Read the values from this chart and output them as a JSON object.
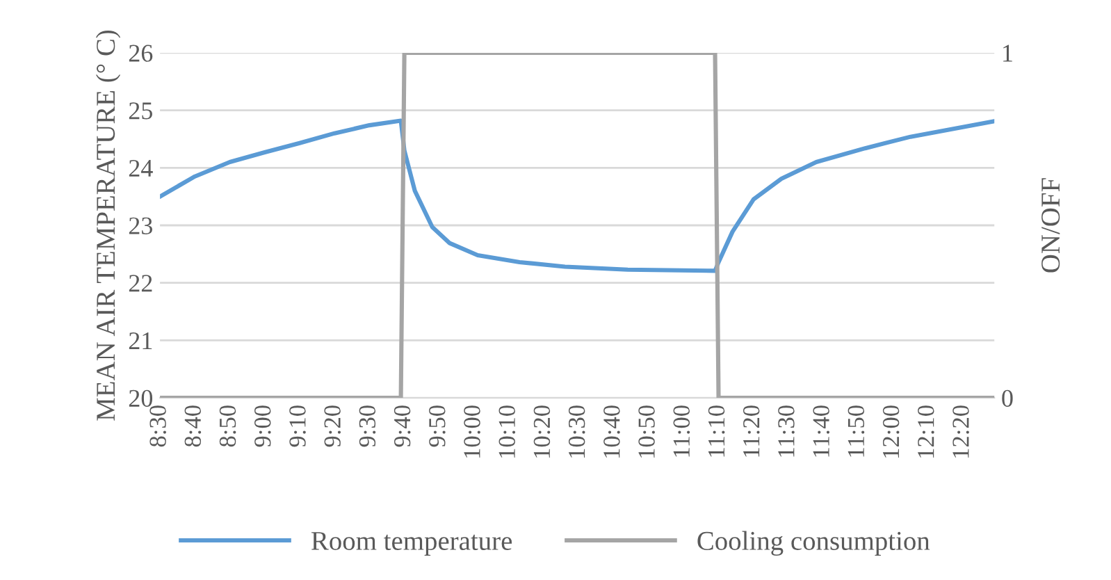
{
  "chart_data": {
    "type": "line",
    "ylabel": "MEAN AIR TEMPERATURE (° C)",
    "y2label": "ON/OFF",
    "xlim": [
      8.5,
      12.4833
    ],
    "xticks": [
      {
        "value": 8.5,
        "label": "8:30"
      },
      {
        "value": 8.6667,
        "label": "8:40"
      },
      {
        "value": 8.8333,
        "label": "8:50"
      },
      {
        "value": 9.0,
        "label": "9:00"
      },
      {
        "value": 9.1667,
        "label": "9:10"
      },
      {
        "value": 9.3333,
        "label": "9:20"
      },
      {
        "value": 9.5,
        "label": "9:30"
      },
      {
        "value": 9.6667,
        "label": "9:40"
      },
      {
        "value": 9.8333,
        "label": "9:50"
      },
      {
        "value": 10.0,
        "label": "10:00"
      },
      {
        "value": 10.1667,
        "label": "10:10"
      },
      {
        "value": 10.3333,
        "label": "10:20"
      },
      {
        "value": 10.5,
        "label": "10:30"
      },
      {
        "value": 10.6667,
        "label": "10:40"
      },
      {
        "value": 10.8333,
        "label": "10:50"
      },
      {
        "value": 11.0,
        "label": "11:00"
      },
      {
        "value": 11.1667,
        "label": "11:10"
      },
      {
        "value": 11.3333,
        "label": "11:20"
      },
      {
        "value": 11.5,
        "label": "11:30"
      },
      {
        "value": 11.6667,
        "label": "11:40"
      },
      {
        "value": 11.8333,
        "label": "11:50"
      },
      {
        "value": 12.0,
        "label": "12:00"
      },
      {
        "value": 12.1667,
        "label": "12:10"
      },
      {
        "value": 12.3333,
        "label": "12:20"
      }
    ],
    "ylim": [
      20,
      26
    ],
    "yticks": [
      20,
      21,
      22,
      23,
      24,
      25,
      26
    ],
    "y2lim": [
      0,
      1
    ],
    "y2ticks": [
      0,
      1
    ],
    "grid": "y",
    "legend": "bottom",
    "marker": "none",
    "line_style": "solid",
    "series": [
      {
        "name": "Room temperature",
        "color": "#5b9bd5",
        "x": [
          8.5,
          8.6667,
          8.8333,
          9.0,
          9.1667,
          9.3333,
          9.5,
          9.65,
          9.6667,
          9.7167,
          9.8,
          9.8833,
          10.0167,
          10.2167,
          10.4333,
          10.7333,
          11.15,
          11.1667,
          11.2333,
          11.3333,
          11.4667,
          11.6333,
          11.8667,
          12.0833,
          12.4833
        ],
        "values": [
          23.5,
          23.85,
          24.1,
          24.27,
          24.43,
          24.6,
          24.74,
          24.82,
          24.3,
          23.6,
          22.97,
          22.69,
          22.48,
          22.36,
          22.28,
          22.23,
          22.21,
          22.36,
          22.89,
          23.45,
          23.81,
          24.1,
          24.34,
          24.54,
          24.81
        ]
      },
      {
        "name": "Cooling consumption",
        "color": "#a5a5a5",
        "axis": "y2",
        "x": [
          8.5,
          9.65,
          9.6667,
          11.15,
          11.1667,
          12.4833
        ],
        "values": [
          0,
          0,
          1,
          1,
          0,
          0
        ]
      }
    ]
  }
}
